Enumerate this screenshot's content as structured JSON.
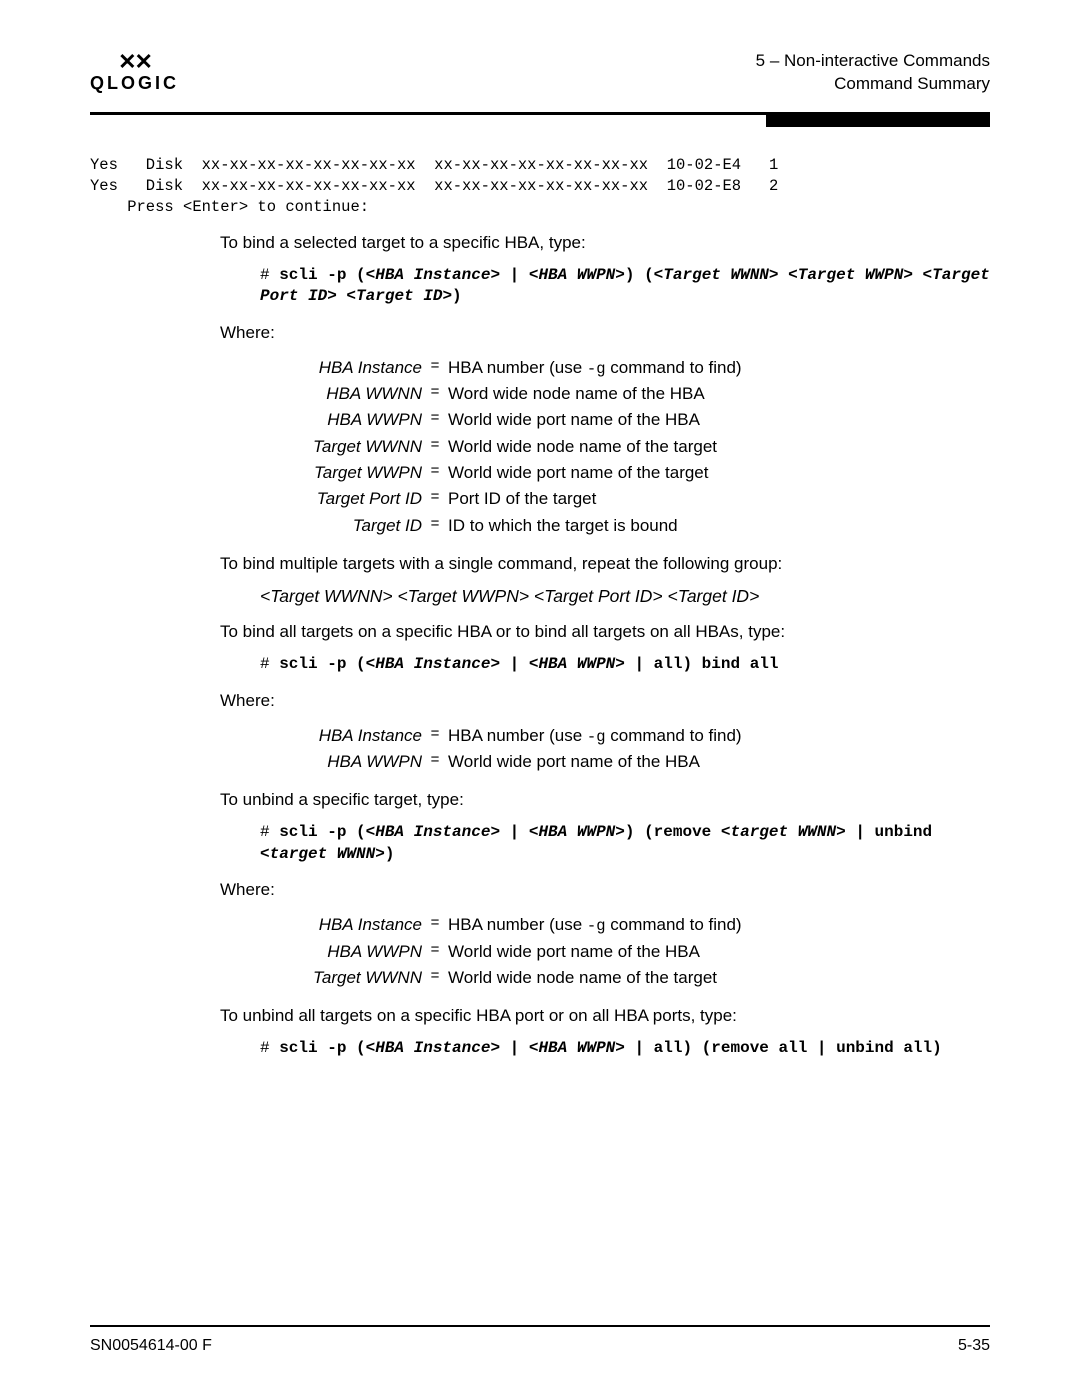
{
  "header": {
    "logo_text": "QLOGIC",
    "line1": "5 – Non-interactive Commands",
    "line2": "Command Summary"
  },
  "terminal": {
    "row1": "Yes   Disk  xx-xx-xx-xx-xx-xx-xx-xx  xx-xx-xx-xx-xx-xx-xx-xx  10-02-E4   1",
    "row2": "Yes   Disk  xx-xx-xx-xx-xx-xx-xx-xx  xx-xx-xx-xx-xx-xx-xx-xx  10-02-E8   2",
    "row3": "    Press <Enter> to continue:"
  },
  "p1": "To bind a selected target to a specific HBA, type:",
  "cmd1": {
    "hash": "# ",
    "pre": "scli -p (<",
    "a": "HBA Instance",
    "mid1": "> | <",
    "b": "HBA WWPN",
    "mid2": ">) (<",
    "c": "Target WWNN",
    "mid3": "> <",
    "d": "Target WWPN",
    "mid4": "> <",
    "e": "Target Port ID",
    "mid5": "> <",
    "f": "Target ID",
    "end": ">)"
  },
  "where": "Where:",
  "defs1": [
    {
      "term": "HBA Instance",
      "desc_pre": "HBA number (use ",
      "mono": "-g",
      "desc_post": " command to find)"
    },
    {
      "term": "HBA WWNN",
      "desc_pre": "Word wide node name of the HBA",
      "mono": "",
      "desc_post": ""
    },
    {
      "term": "HBA WWPN",
      "desc_pre": "World wide port name of the HBA",
      "mono": "",
      "desc_post": ""
    },
    {
      "term": "Target WWNN",
      "desc_pre": "World wide node name of the target",
      "mono": "",
      "desc_post": ""
    },
    {
      "term": "Target WWPN",
      "desc_pre": "World wide port name of the target",
      "mono": "",
      "desc_post": ""
    },
    {
      "term": "Target Port ID",
      "desc_pre": "Port ID of the target",
      "mono": "",
      "desc_post": ""
    },
    {
      "term": "Target ID",
      "desc_pre": "ID to which the target is bound",
      "mono": "",
      "desc_post": ""
    }
  ],
  "p2": "To bind multiple targets with a single command, repeat the following group:",
  "syntax": "<Target WWNN> <Target WWPN> <Target Port ID> <Target ID>",
  "p3": "To bind all targets on a specific HBA or to bind all targets on all HBAs, type:",
  "cmd2": {
    "hash": "# ",
    "pre": "scli -p (<",
    "a": "HBA Instance",
    "mid1": "> | <",
    "b": "HBA WWPN",
    "end": "> | all) bind all"
  },
  "defs2": [
    {
      "term": "HBA Instance",
      "desc_pre": "HBA number (use ",
      "mono": "-g",
      "desc_post": " command to find)"
    },
    {
      "term": "HBA WWPN",
      "desc_pre": "World wide port name of the HBA",
      "mono": "",
      "desc_post": ""
    }
  ],
  "p4": "To unbind a specific target, type:",
  "cmd3": {
    "hash": "# ",
    "pre": "scli -p (<",
    "a": "HBA Instance",
    "mid1": "> | <",
    "b": "HBA WWPN",
    "mid2": ">) (remove <",
    "c": "target WWNN",
    "mid3": "> | unbind <",
    "d": "target WWNN",
    "end": ">)"
  },
  "defs3": [
    {
      "term": "HBA Instance",
      "desc_pre": "HBA number (use ",
      "mono": "-g",
      "desc_post": " command to find)"
    },
    {
      "term": "HBA WWPN",
      "desc_pre": "World wide port name of the HBA",
      "mono": "",
      "desc_post": ""
    },
    {
      "term": "Target WWNN",
      "desc_pre": "World wide node name of the target",
      "mono": "",
      "desc_post": ""
    }
  ],
  "p5": "To unbind all targets on a specific HBA port or on all HBA ports, type:",
  "cmd4": {
    "hash": "# ",
    "pre": "scli -p (<",
    "a": "HBA Instance",
    "mid1": "> | <",
    "b": "HBA WWPN",
    "end": "> | all) (remove all | unbind all)"
  },
  "footer": {
    "left": "SN0054614-00 F",
    "right": "5-35"
  }
}
